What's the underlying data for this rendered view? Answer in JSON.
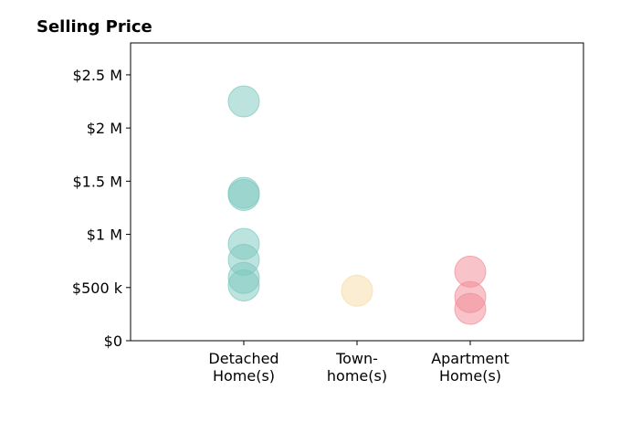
{
  "chart_data": {
    "type": "scatter",
    "title": "Selling Price",
    "xlabel": "",
    "ylabel": "",
    "categories": [
      [
        "Detached",
        "Home(s)"
      ],
      [
        "Town-",
        "home(s)"
      ],
      [
        "Apartment",
        "Home(s)"
      ]
    ],
    "ylim": [
      0,
      2800000
    ],
    "yticks": [
      {
        "value": 0,
        "label": "$0"
      },
      {
        "value": 500000,
        "label": "$500 k"
      },
      {
        "value": 1000000,
        "label": "$1 M"
      },
      {
        "value": 1500000,
        "label": "$1.5 M"
      },
      {
        "value": 2000000,
        "label": "$2 M"
      },
      {
        "value": 2500000,
        "label": "$2.5 M"
      }
    ],
    "grid": false,
    "legend": "none",
    "series": [
      {
        "category": 0,
        "color": "#7bc8bd",
        "values": [
          2250000,
          1390000,
          1370000,
          910000,
          760000,
          590000,
          520000
        ]
      },
      {
        "category": 1,
        "color": "#f5dca5",
        "values": [
          470000
        ]
      },
      {
        "category": 2,
        "color": "#f28a96",
        "values": [
          650000,
          410000,
          300000
        ]
      }
    ]
  }
}
